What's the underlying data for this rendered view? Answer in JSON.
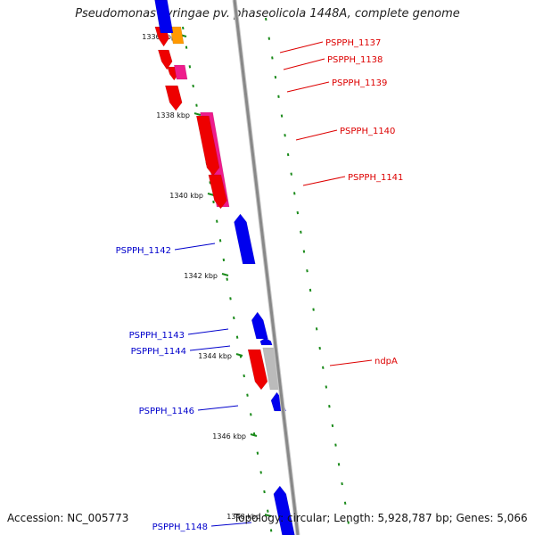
{
  "title": "Pseudomonas syringae pv. phaseolicola 1448A, complete genome",
  "footer": {
    "accession": "Accession: NC_005773",
    "summary": "Topology: circular; Length: 5,928,787 bp; Genes: 5,066"
  },
  "colors": {
    "backbone": "#888888",
    "tick": "#1a8a1a",
    "forward_label": "#dd0000",
    "reverse_label": "#0000cc",
    "gene_red": "#ee0000",
    "gene_pink": "#ee1c8c",
    "gene_orange": "#ff9900",
    "gene_blue": "#0000ee",
    "gene_grey": "#bbbbbb"
  },
  "kbp_ticks": [
    {
      "label": "1336 kbp"
    },
    {
      "label": "1338 kbp"
    },
    {
      "label": "1340 kbp"
    },
    {
      "label": "1342 kbp"
    },
    {
      "label": "1344 kbp"
    },
    {
      "label": "1346 kbp"
    },
    {
      "label": "1348 kbp"
    }
  ],
  "gene_labels": [
    {
      "text": "PSPPH_1137",
      "strand": "forward"
    },
    {
      "text": "PSPPH_1138",
      "strand": "forward"
    },
    {
      "text": "PSPPH_1139",
      "strand": "forward"
    },
    {
      "text": "PSPPH_1140",
      "strand": "forward"
    },
    {
      "text": "PSPPH_1141",
      "strand": "forward"
    },
    {
      "text": "ndpA",
      "strand": "forward"
    },
    {
      "text": "PSPPH_1142",
      "strand": "reverse"
    },
    {
      "text": "PSPPH_1143",
      "strand": "reverse"
    },
    {
      "text": "PSPPH_1144",
      "strand": "reverse"
    },
    {
      "text": "PSPPH_1146",
      "strand": "reverse"
    },
    {
      "text": "PSPPH_1148",
      "strand": "reverse"
    }
  ]
}
